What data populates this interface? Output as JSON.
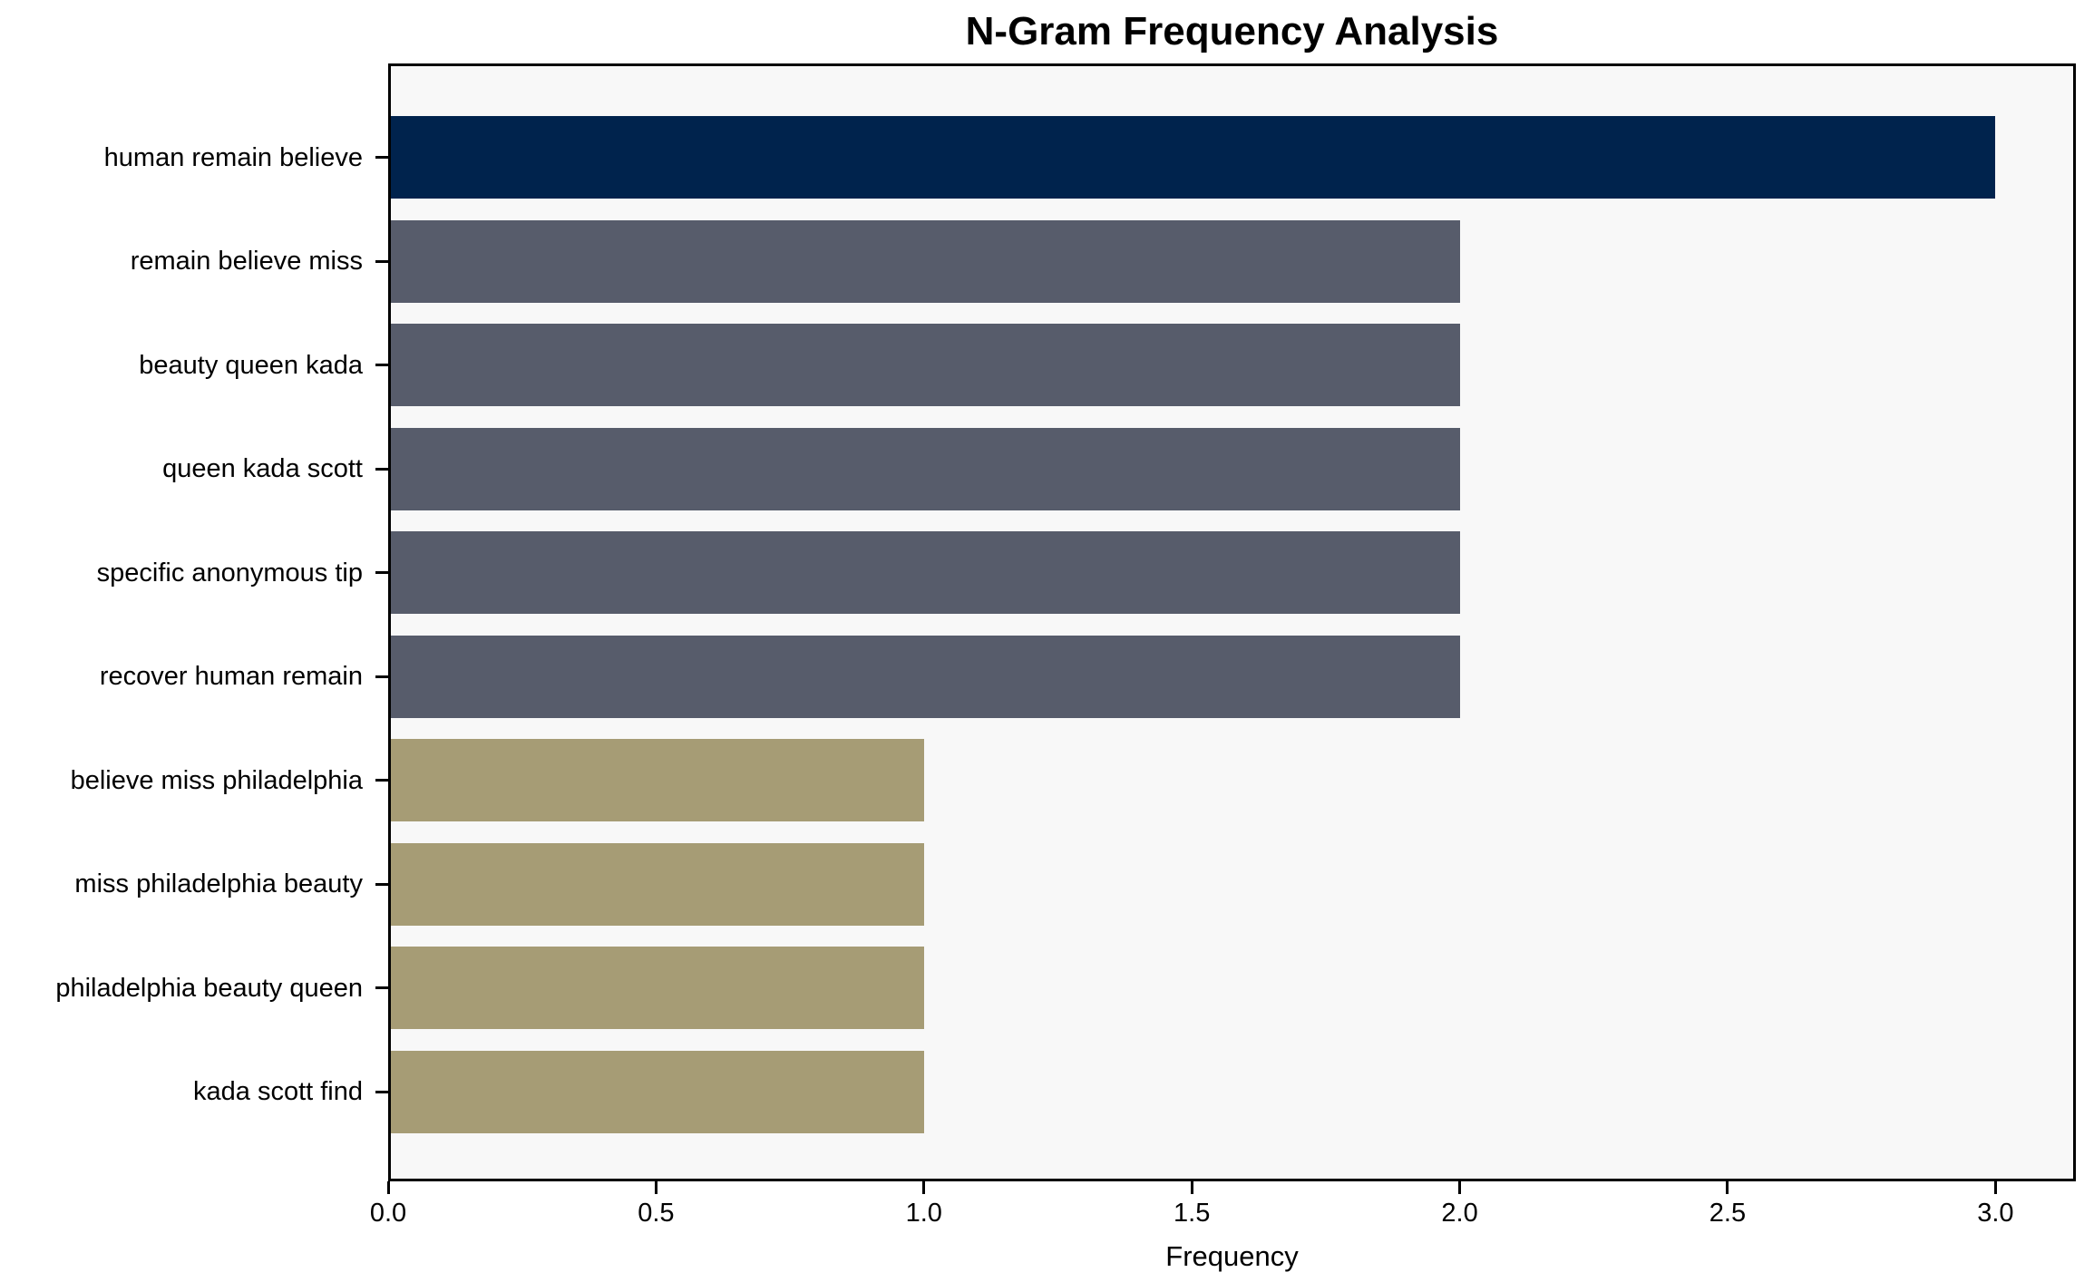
{
  "chart_data": {
    "type": "bar",
    "orientation": "horizontal",
    "title": "N-Gram Frequency Analysis",
    "xlabel": "Frequency",
    "ylabel": "",
    "categories": [
      "human remain believe",
      "remain believe miss",
      "beauty queen kada",
      "queen kada scott",
      "specific anonymous tip",
      "recover human remain",
      "believe miss philadelphia",
      "miss philadelphia beauty",
      "philadelphia beauty queen",
      "kada scott find"
    ],
    "values": [
      3,
      2,
      2,
      2,
      2,
      2,
      1,
      1,
      1,
      1
    ],
    "bar_colors": [
      "#00234d",
      "#575c6b",
      "#575c6b",
      "#575c6b",
      "#575c6b",
      "#575c6b",
      "#a69c75",
      "#a69c75",
      "#a69c75",
      "#a69c75"
    ],
    "value_color_map": {
      "3": "#00234d",
      "2": "#575c6b",
      "1": "#a69c75"
    },
    "x_ticks": [
      0,
      0.5,
      1,
      1.5,
      2,
      2.5,
      3
    ],
    "x_tick_labels": [
      "0.0",
      "0.5",
      "1.0",
      "1.5",
      "2.0",
      "2.5",
      "3.0"
    ],
    "xlim": [
      0,
      3.15
    ],
    "grid": false,
    "legend": "none"
  },
  "style": {
    "figure_background": "#ffffff",
    "plot_background": "#f8f8f8",
    "spine_color": "#000000",
    "text_color": "#000000"
  }
}
